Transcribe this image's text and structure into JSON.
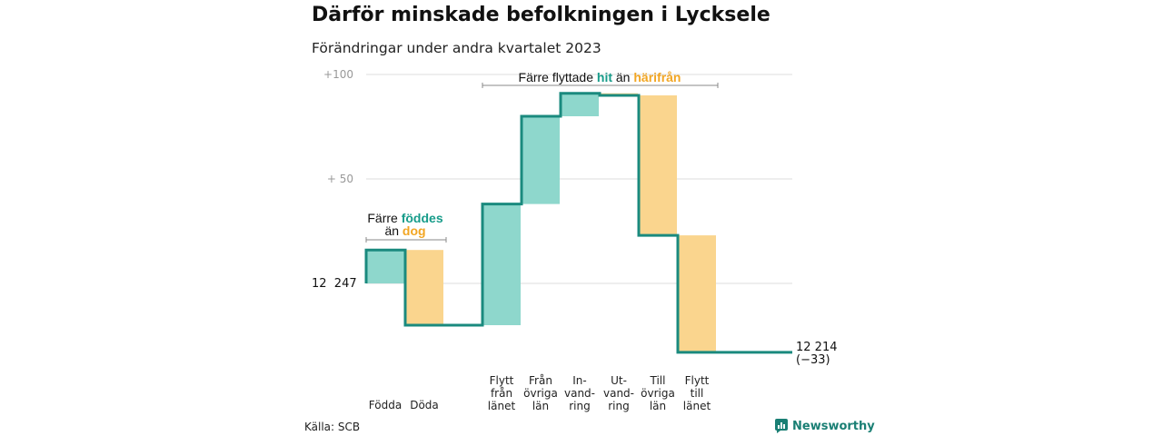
{
  "title": "Därför minskade befolkningen i Lycksele",
  "subtitle": "Förändringar under andra kvartalet 2023",
  "source": "Källa: SCB",
  "brand": "Newsworthy",
  "colors": {
    "increase": "#8ed7cc",
    "decrease": "#fad58e",
    "line": "#1a8a7e",
    "accent_green": "#179c8a",
    "accent_orange": "#f2a623",
    "grid": "#dddddd"
  },
  "annotations": {
    "born": {
      "pre": "Färre",
      "green": "föddes",
      "mid": "än",
      "orange": "dog"
    },
    "moved": {
      "pre": "Färre flyttade",
      "green": "hit",
      "mid": "än",
      "orange": "härifrån"
    }
  },
  "chart_data": {
    "type": "waterfall",
    "start_label": "12  247",
    "start_value": 12247,
    "end_label": "12 214",
    "end_change": "(−33)",
    "end_value": 12214,
    "y_ticks": [
      {
        "label": "+100",
        "value": 100
      },
      {
        "label": "+  50",
        "value": 50
      }
    ],
    "y_range_relative": [
      -35,
      100
    ],
    "steps": [
      {
        "label": [
          "Födda"
        ],
        "change": 16,
        "group": 0
      },
      {
        "label": [
          "Döda"
        ],
        "change": -36,
        "group": 0
      },
      {
        "label": [
          "Flytt",
          "från",
          "länet"
        ],
        "change": 58,
        "group": 1
      },
      {
        "label": [
          "Från",
          "övriga",
          "län"
        ],
        "change": 42,
        "group": 1
      },
      {
        "label": [
          "In-",
          "vand-",
          "ring"
        ],
        "change": 11,
        "group": 1
      },
      {
        "label": [
          "Ut-",
          "vand-",
          "ring"
        ],
        "change": -1,
        "group": 1
      },
      {
        "label": [
          "Till",
          "övriga",
          "län"
        ],
        "change": -67,
        "group": 1
      },
      {
        "label": [
          "Flytt",
          "till",
          "länet"
        ],
        "change": -56,
        "group": 1
      }
    ]
  }
}
